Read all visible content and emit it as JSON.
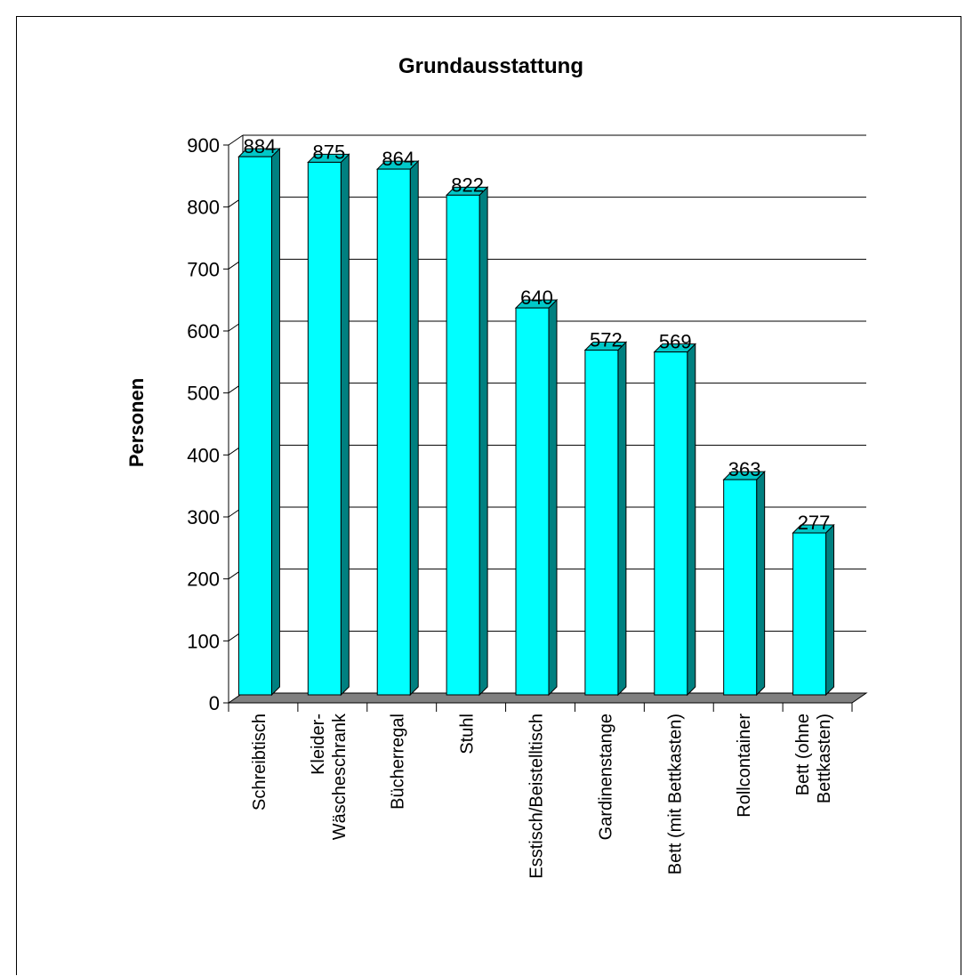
{
  "chart_data": {
    "type": "bar",
    "title": "Grundausstattung",
    "xlabel": "",
    "ylabel": "Personen",
    "ylim": [
      0,
      900
    ],
    "yticks": [
      "0",
      "100",
      "200",
      "300",
      "400",
      "500",
      "600",
      "700",
      "800",
      "900"
    ],
    "categories": [
      [
        "Schreibtisch"
      ],
      [
        "Kleider-",
        "Wäscheschrank"
      ],
      [
        "Bücherregal"
      ],
      [
        "Stuhl"
      ],
      [
        "Esstisch/Beistelltisch"
      ],
      [
        "Gardinenstange"
      ],
      [
        "Bett (mit Bettkasten)"
      ],
      [
        "Rollcontainer"
      ],
      [
        "Bett (ohne",
        "Bettkasten)"
      ]
    ],
    "values": [
      884,
      875,
      864,
      822,
      640,
      572,
      569,
      363,
      277
    ],
    "grid": true,
    "legend": "none",
    "colors": {
      "bar_front": "#00ffff",
      "bar_side": "#008080",
      "bar_top": "#00c8c8",
      "floor": "#808080"
    }
  }
}
